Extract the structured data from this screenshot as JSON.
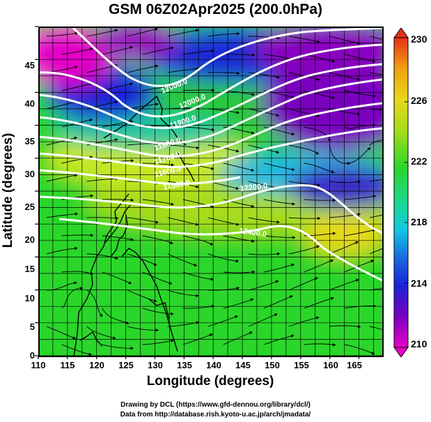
{
  "title": "GSM 06Z02Apr2025 (200.0hPa)",
  "map": {
    "xlabel": "Longitude (degrees)",
    "ylabel": "Latitude (degrees)",
    "xlim": [
      110,
      169
    ],
    "ylim": [
      0,
      50
    ],
    "x_ticks": [
      "110",
      "115",
      "120",
      "125",
      "130",
      "135",
      "140",
      "145",
      "150",
      "155",
      "160",
      "165"
    ],
    "y_ticks": [
      "0",
      "5",
      "10",
      "15",
      "20",
      "25",
      "30",
      "35",
      "40",
      "45"
    ],
    "contour_labels": [
      "12000.0",
      "12000.0",
      "11900.0",
      "11800.0",
      "11700.0",
      "11600.0",
      "11500.0",
      "12200.0",
      "12400.0"
    ],
    "colors": {
      "magenta": "#e400c8",
      "purple": "#7a00c0",
      "blue": "#1a24d6",
      "cyan": "#10c8e0",
      "green": "#2cd62c",
      "yellow": "#d6e81a",
      "orange": "#f0a010",
      "red": "#e83018"
    }
  },
  "colorbar": {
    "labels": [
      "230",
      "226",
      "222",
      "218",
      "214",
      "210"
    ]
  },
  "credits": {
    "line1": "Drawing by DCL (https://www.gfd-dennou.org/library/dcl/)",
    "line2": "Data from http://database.rish.kyoto-u.ac.jp/arch/jmadata/"
  }
}
